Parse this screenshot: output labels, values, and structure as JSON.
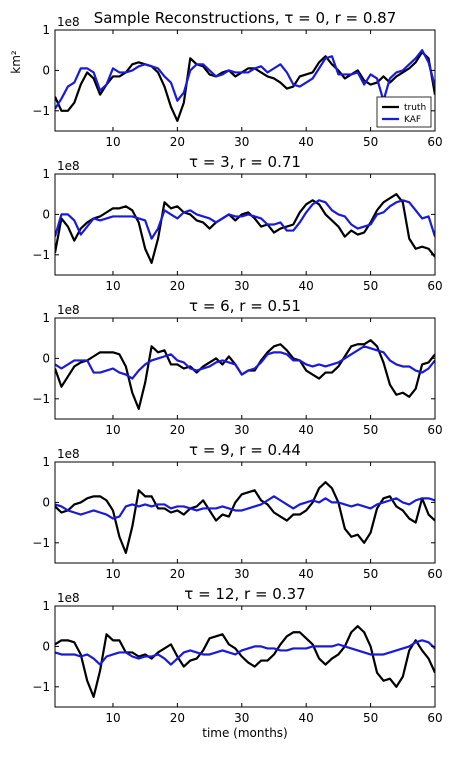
{
  "figure_title": "Sample Reconstructions",
  "chart_data": [
    {
      "type": "line",
      "title": "τ = 0, r = 0.87",
      "title_prefix": "Sample Reconstructions, ",
      "ylabel": "km²",
      "xlabel": "",
      "exponent_label": "1e8",
      "xlim": [
        1,
        60
      ],
      "ylim": [
        -1.5,
        1.0
      ],
      "xticks": [
        10,
        20,
        30,
        40,
        50,
        60
      ],
      "yticks": [
        -1,
        0,
        1
      ],
      "legend": {
        "placement": "lower-right",
        "entries": [
          "truth",
          "KAF"
        ]
      },
      "x": [
        1,
        2,
        3,
        4,
        5,
        6,
        7,
        8,
        9,
        10,
        11,
        12,
        13,
        14,
        15,
        16,
        17,
        18,
        19,
        20,
        21,
        22,
        23,
        24,
        25,
        26,
        27,
        28,
        29,
        30,
        31,
        32,
        33,
        34,
        35,
        36,
        37,
        38,
        39,
        40,
        41,
        42,
        43,
        44,
        45,
        46,
        47,
        48,
        49,
        50,
        51,
        52,
        53,
        54,
        55,
        56,
        57,
        58,
        59,
        60
      ],
      "series": [
        {
          "name": "truth",
          "color": "#000000",
          "values": [
            -0.65,
            -1.0,
            -1.0,
            -0.8,
            -0.35,
            -0.05,
            -0.2,
            -0.6,
            -0.35,
            -0.15,
            -0.15,
            -0.05,
            0.15,
            0.2,
            0.15,
            0.1,
            -0.05,
            -0.4,
            -0.9,
            -1.25,
            -0.8,
            0.3,
            0.15,
            0.1,
            -0.1,
            -0.15,
            -0.05,
            0.0,
            -0.15,
            -0.05,
            0.05,
            0.05,
            -0.05,
            -0.15,
            -0.2,
            -0.3,
            -0.45,
            -0.4,
            -0.15,
            -0.1,
            -0.05,
            0.2,
            0.35,
            0.15,
            0.0,
            -0.2,
            -0.1,
            0.0,
            -0.25,
            -0.35,
            -0.3,
            -0.15,
            -0.3,
            -0.15,
            -0.05,
            0.05,
            0.2,
            0.45,
            0.3,
            -0.6
          ]
        },
        {
          "name": "KAF",
          "color": "#1a1adc",
          "values": [
            -0.95,
            -0.7,
            -0.4,
            -0.3,
            0.05,
            0.05,
            -0.05,
            -0.5,
            -0.35,
            0.05,
            -0.05,
            -0.05,
            0.0,
            0.1,
            0.15,
            0.1,
            0.05,
            -0.15,
            -0.3,
            -0.75,
            -0.55,
            0.0,
            0.15,
            0.15,
            0.0,
            -0.15,
            -0.1,
            0.0,
            -0.05,
            -0.05,
            -0.05,
            0.05,
            0.1,
            -0.05,
            0.05,
            0.15,
            -0.05,
            -0.35,
            -0.4,
            -0.3,
            -0.2,
            0.05,
            0.3,
            0.35,
            -0.1,
            -0.1,
            -0.1,
            -0.05,
            -0.35,
            -0.1,
            -0.2,
            -0.75,
            -0.2,
            -0.05,
            0.0,
            0.15,
            0.3,
            0.5,
            0.2,
            -0.4
          ]
        }
      ]
    },
    {
      "type": "line",
      "title": "τ = 3, r = 0.71",
      "exponent_label": "1e8",
      "xlim": [
        1,
        60
      ],
      "ylim": [
        -1.5,
        1.0
      ],
      "xticks": [
        10,
        20,
        30,
        40,
        50,
        60
      ],
      "yticks": [
        -1,
        0,
        1
      ],
      "x": [
        1,
        2,
        3,
        4,
        5,
        6,
        7,
        8,
        9,
        10,
        11,
        12,
        13,
        14,
        15,
        16,
        17,
        18,
        19,
        20,
        21,
        22,
        23,
        24,
        25,
        26,
        27,
        28,
        29,
        30,
        31,
        32,
        33,
        34,
        35,
        36,
        37,
        38,
        39,
        40,
        41,
        42,
        43,
        44,
        45,
        46,
        47,
        48,
        49,
        50,
        51,
        52,
        53,
        54,
        55,
        56,
        57,
        58,
        59,
        60
      ],
      "series": [
        {
          "name": "truth",
          "color": "#000000",
          "values": [
            -0.95,
            -0.1,
            -0.3,
            -0.65,
            -0.35,
            -0.2,
            -0.1,
            -0.05,
            0.05,
            0.15,
            0.15,
            0.2,
            0.1,
            -0.2,
            -0.85,
            -1.2,
            -0.6,
            0.3,
            0.15,
            0.2,
            0.05,
            0.0,
            -0.15,
            -0.2,
            -0.35,
            -0.2,
            -0.1,
            0.0,
            -0.15,
            0.0,
            0.05,
            -0.1,
            -0.3,
            -0.25,
            -0.45,
            -0.35,
            -0.3,
            -0.25,
            0.05,
            0.25,
            0.35,
            0.25,
            0.0,
            -0.15,
            -0.3,
            -0.55,
            -0.4,
            -0.5,
            -0.45,
            -0.2,
            0.1,
            0.3,
            0.4,
            0.5,
            0.3,
            -0.6,
            -0.85,
            -0.8,
            -0.85,
            -1.05
          ]
        },
        {
          "name": "KAF",
          "color": "#1a1adc",
          "values": [
            -0.55,
            0.0,
            0.0,
            -0.15,
            -0.5,
            -0.3,
            -0.1,
            -0.15,
            -0.1,
            -0.05,
            -0.05,
            -0.05,
            -0.05,
            -0.1,
            -0.15,
            -0.6,
            -0.35,
            0.1,
            0.0,
            -0.1,
            0.05,
            0.1,
            0.0,
            -0.05,
            -0.1,
            -0.2,
            -0.1,
            0.0,
            -0.05,
            -0.05,
            0.0,
            -0.05,
            -0.1,
            -0.25,
            -0.25,
            -0.2,
            -0.4,
            -0.4,
            -0.2,
            0.05,
            0.25,
            0.35,
            0.3,
            0.1,
            0.0,
            -0.05,
            -0.25,
            -0.35,
            -0.3,
            -0.25,
            0.0,
            0.05,
            0.2,
            0.3,
            0.35,
            0.3,
            0.1,
            -0.1,
            -0.05,
            -0.55
          ]
        }
      ]
    },
    {
      "type": "line",
      "title": "τ = 6, r = 0.51",
      "exponent_label": "1e8",
      "xlim": [
        1,
        60
      ],
      "ylim": [
        -1.5,
        1.0
      ],
      "xticks": [
        10,
        20,
        30,
        40,
        50,
        60
      ],
      "yticks": [
        -1,
        0,
        1
      ],
      "x": [
        1,
        2,
        3,
        4,
        5,
        6,
        7,
        8,
        9,
        10,
        11,
        12,
        13,
        14,
        15,
        16,
        17,
        18,
        19,
        20,
        21,
        22,
        23,
        24,
        25,
        26,
        27,
        28,
        29,
        30,
        31,
        32,
        33,
        34,
        35,
        36,
        37,
        38,
        39,
        40,
        41,
        42,
        43,
        44,
        45,
        46,
        47,
        48,
        49,
        50,
        51,
        52,
        53,
        54,
        55,
        56,
        57,
        58,
        59,
        60
      ],
      "series": [
        {
          "name": "truth",
          "color": "#000000",
          "values": [
            -0.25,
            -0.7,
            -0.45,
            -0.2,
            -0.1,
            -0.05,
            0.05,
            0.15,
            0.15,
            0.15,
            0.1,
            -0.2,
            -0.85,
            -1.25,
            -0.6,
            0.3,
            0.15,
            0.2,
            -0.15,
            -0.15,
            -0.25,
            -0.2,
            -0.35,
            -0.2,
            -0.1,
            0.0,
            -0.15,
            0.05,
            -0.15,
            -0.4,
            -0.3,
            -0.3,
            -0.05,
            0.15,
            0.3,
            0.35,
            0.2,
            0.0,
            -0.05,
            -0.3,
            -0.4,
            -0.5,
            -0.35,
            -0.35,
            -0.2,
            0.05,
            0.3,
            0.35,
            0.35,
            0.45,
            0.3,
            -0.1,
            -0.65,
            -0.9,
            -0.85,
            -0.95,
            -0.75,
            -0.15,
            -0.1,
            0.1
          ]
        },
        {
          "name": "KAF",
          "color": "#1a1adc",
          "values": [
            -0.15,
            -0.25,
            -0.15,
            -0.05,
            -0.05,
            -0.05,
            -0.35,
            -0.35,
            -0.3,
            -0.25,
            -0.35,
            -0.4,
            -0.5,
            -0.3,
            -0.15,
            -0.05,
            0.0,
            0.05,
            0.1,
            -0.05,
            -0.1,
            -0.25,
            -0.3,
            -0.25,
            -0.2,
            -0.1,
            -0.05,
            -0.1,
            -0.15,
            -0.4,
            -0.3,
            -0.25,
            -0.1,
            0.1,
            0.15,
            0.15,
            0.1,
            -0.05,
            -0.05,
            -0.15,
            -0.2,
            -0.15,
            -0.2,
            -0.15,
            -0.1,
            0.0,
            0.1,
            0.2,
            0.3,
            0.25,
            0.2,
            0.15,
            -0.05,
            -0.15,
            -0.2,
            -0.2,
            -0.3,
            -0.35,
            -0.25,
            -0.05
          ]
        }
      ]
    },
    {
      "type": "line",
      "title": "τ = 9, r = 0.44",
      "exponent_label": "1e8",
      "xlim": [
        1,
        60
      ],
      "ylim": [
        -1.5,
        1.0
      ],
      "xticks": [
        10,
        20,
        30,
        40,
        50,
        60
      ],
      "yticks": [
        -1,
        0,
        1
      ],
      "x": [
        1,
        2,
        3,
        4,
        5,
        6,
        7,
        8,
        9,
        10,
        11,
        12,
        13,
        14,
        15,
        16,
        17,
        18,
        19,
        20,
        21,
        22,
        23,
        24,
        25,
        26,
        27,
        28,
        29,
        30,
        31,
        32,
        33,
        34,
        35,
        36,
        37,
        38,
        39,
        40,
        41,
        42,
        43,
        44,
        45,
        46,
        47,
        48,
        49,
        50,
        51,
        52,
        53,
        54,
        55,
        56,
        57,
        58,
        59,
        60
      ],
      "series": [
        {
          "name": "truth",
          "color": "#000000",
          "values": [
            -0.1,
            -0.25,
            -0.2,
            -0.05,
            0.0,
            0.1,
            0.15,
            0.15,
            0.05,
            -0.2,
            -0.85,
            -1.25,
            -0.6,
            0.3,
            0.15,
            0.15,
            -0.15,
            -0.15,
            -0.25,
            -0.2,
            -0.3,
            -0.15,
            -0.1,
            0.05,
            -0.2,
            -0.45,
            -0.3,
            -0.35,
            0.0,
            0.2,
            0.25,
            0.3,
            0.05,
            -0.05,
            -0.25,
            -0.35,
            -0.45,
            -0.3,
            -0.3,
            -0.2,
            0.0,
            0.35,
            0.5,
            0.35,
            0.0,
            -0.65,
            -0.85,
            -0.8,
            -1.0,
            -0.75,
            -0.15,
            0.1,
            0.15,
            -0.1,
            -0.2,
            -0.4,
            -0.5,
            0.1,
            -0.3,
            -0.45
          ]
        },
        {
          "name": "KAF",
          "color": "#1a1adc",
          "values": [
            -0.05,
            -0.1,
            -0.2,
            -0.25,
            -0.3,
            -0.25,
            -0.2,
            -0.25,
            -0.3,
            -0.4,
            -0.35,
            -0.1,
            -0.05,
            -0.1,
            -0.05,
            -0.1,
            -0.05,
            -0.05,
            -0.15,
            -0.1,
            -0.1,
            -0.15,
            -0.2,
            -0.15,
            -0.15,
            -0.15,
            -0.1,
            -0.15,
            -0.2,
            -0.2,
            -0.15,
            -0.1,
            -0.05,
            0.05,
            0.15,
            0.05,
            -0.05,
            -0.15,
            -0.05,
            0.0,
            0.05,
            0.0,
            0.1,
            0.0,
            0.0,
            -0.05,
            -0.1,
            -0.05,
            -0.1,
            -0.15,
            -0.05,
            0.0,
            0.05,
            0.1,
            0.0,
            -0.05,
            0.05,
            0.1,
            0.1,
            0.05
          ]
        }
      ]
    },
    {
      "type": "line",
      "title": "τ = 12, r = 0.37",
      "xlabel": "time (months)",
      "exponent_label": "1e8",
      "xlim": [
        1,
        60
      ],
      "ylim": [
        -1.5,
        1.0
      ],
      "xticks": [
        10,
        20,
        30,
        40,
        50,
        60
      ],
      "yticks": [
        -1,
        0,
        1
      ],
      "x": [
        1,
        2,
        3,
        4,
        5,
        6,
        7,
        8,
        9,
        10,
        11,
        12,
        13,
        14,
        15,
        16,
        17,
        18,
        19,
        20,
        21,
        22,
        23,
        24,
        25,
        26,
        27,
        28,
        29,
        30,
        31,
        32,
        33,
        34,
        35,
        36,
        37,
        38,
        39,
        40,
        41,
        42,
        43,
        44,
        45,
        46,
        47,
        48,
        49,
        50,
        51,
        52,
        53,
        54,
        55,
        56,
        57,
        58,
        59,
        60
      ],
      "series": [
        {
          "name": "truth",
          "color": "#000000",
          "values": [
            0.05,
            0.15,
            0.15,
            0.1,
            -0.2,
            -0.85,
            -1.25,
            -0.6,
            0.3,
            0.15,
            0.15,
            -0.15,
            -0.15,
            -0.25,
            -0.2,
            -0.3,
            -0.15,
            -0.05,
            0.05,
            -0.25,
            -0.5,
            -0.35,
            -0.3,
            -0.1,
            0.2,
            0.25,
            0.3,
            0.05,
            -0.05,
            -0.25,
            -0.4,
            -0.5,
            -0.35,
            -0.35,
            -0.2,
            0.05,
            0.25,
            0.35,
            0.35,
            0.2,
            0.05,
            -0.3,
            -0.45,
            -0.3,
            -0.2,
            0.0,
            0.35,
            0.5,
            0.35,
            0.0,
            -0.65,
            -0.85,
            -0.8,
            -1.0,
            -0.75,
            -0.1,
            0.15,
            -0.1,
            -0.3,
            -0.65
          ]
        },
        {
          "name": "KAF",
          "color": "#1a1adc",
          "values": [
            -0.15,
            -0.2,
            -0.2,
            -0.2,
            -0.25,
            -0.2,
            -0.3,
            -0.45,
            -0.25,
            -0.2,
            -0.15,
            -0.15,
            -0.25,
            -0.3,
            -0.25,
            -0.25,
            -0.2,
            -0.3,
            -0.45,
            -0.3,
            -0.15,
            -0.1,
            -0.15,
            -0.2,
            -0.2,
            -0.15,
            -0.1,
            -0.15,
            -0.2,
            -0.1,
            -0.05,
            0.0,
            0.0,
            -0.05,
            -0.05,
            -0.1,
            -0.1,
            -0.05,
            -0.05,
            -0.05,
            0.0,
            0.0,
            0.0,
            0.0,
            0.05,
            0.0,
            -0.05,
            -0.1,
            -0.15,
            -0.2,
            -0.2,
            -0.2,
            -0.15,
            -0.1,
            -0.05,
            0.0,
            0.1,
            0.15,
            0.1,
            -0.05
          ]
        }
      ]
    }
  ]
}
